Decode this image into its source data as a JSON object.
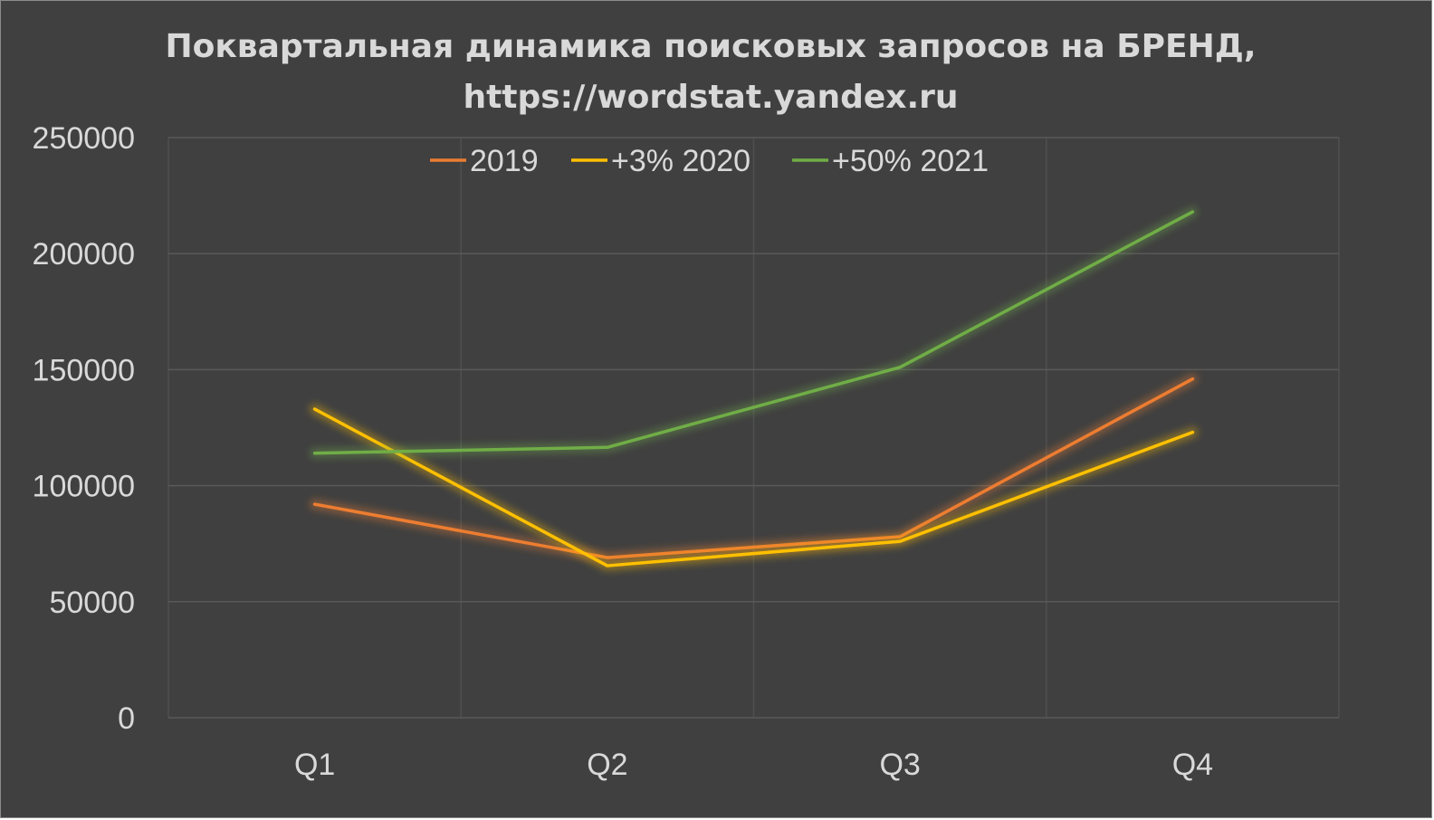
{
  "chart_data": {
    "type": "line",
    "title_lines": [
      "Поквартальная динамика поисковых запросов на БРЕНД,",
      "https://wordstat.yandex.ru"
    ],
    "categories": [
      "Q1",
      "Q2",
      "Q3",
      "Q4"
    ],
    "series": [
      {
        "name": "2019",
        "color": "#ed7d31",
        "values": [
          92000,
          69000,
          78000,
          146000
        ]
      },
      {
        "name": "+3% 2020",
        "color": "#ffc000",
        "values": [
          133000,
          65500,
          76000,
          123000
        ]
      },
      {
        "name": "+50% 2021",
        "color": "#70ad47",
        "values": [
          114000,
          116500,
          151000,
          218000
        ]
      }
    ],
    "ylim": [
      0,
      250000
    ],
    "yticks": [
      "0",
      "50000",
      "100000",
      "150000",
      "200000",
      "250000"
    ],
    "grid": true,
    "legend_position": "top"
  }
}
